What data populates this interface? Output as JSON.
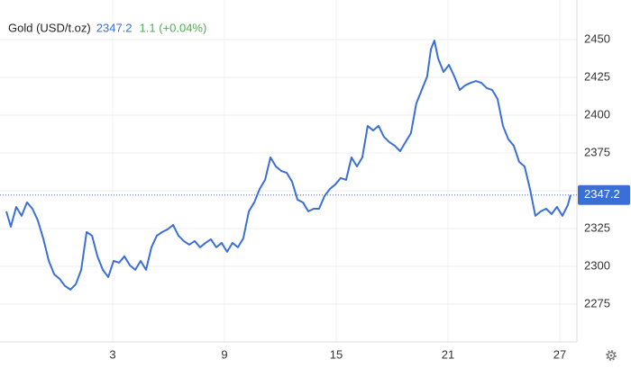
{
  "chart_data": {
    "type": "line",
    "title": "Gold (USD/t.oz)",
    "price": 2347.2,
    "change": "1.1 (+0.04%)",
    "color": "#3b6fd6",
    "price_color": "#3b6fd6",
    "change_color": "#4caf50",
    "grid": true,
    "xlim": [
      -3.05,
      27.92
    ],
    "ylim": [
      2250,
      2476.2
    ],
    "xticks": [
      3,
      9,
      15,
      21,
      27
    ],
    "yticks": [
      2275,
      2300,
      2325,
      2350,
      2375,
      2400,
      2425,
      2450
    ],
    "x": [
      -2.71,
      -2.47,
      -2.18,
      -1.89,
      -1.6,
      -1.31,
      -1.02,
      -0.73,
      -0.43,
      -0.14,
      0.15,
      0.44,
      0.73,
      1.02,
      1.31,
      1.6,
      1.89,
      2.18,
      2.47,
      2.76,
      3.05,
      3.34,
      3.63,
      3.92,
      4.21,
      4.5,
      4.79,
      5.08,
      5.37,
      5.66,
      5.95,
      6.24,
      6.53,
      6.82,
      7.11,
      7.4,
      7.69,
      7.98,
      8.27,
      8.56,
      8.85,
      9.14,
      9.43,
      9.72,
      10.01,
      10.31,
      10.6,
      10.89,
      11.18,
      11.47,
      11.76,
      12.05,
      12.34,
      12.63,
      12.92,
      13.21,
      13.5,
      13.79,
      14.08,
      14.37,
      14.66,
      14.95,
      15.24,
      15.53,
      15.82,
      16.11,
      16.4,
      16.69,
      16.98,
      17.27,
      17.56,
      17.85,
      18.14,
      18.43,
      18.72,
      19.01,
      19.3,
      19.59,
      19.88,
      20.08,
      20.27,
      20.47,
      20.76,
      21.05,
      21.34,
      21.63,
      21.92,
      22.21,
      22.5,
      22.79,
      23.08,
      23.37,
      23.66,
      23.95,
      24.24,
      24.53,
      24.82,
      25.11,
      25.4,
      25.69,
      25.98,
      26.27,
      26.56,
      26.85,
      27.14,
      27.43,
      27.58
    ],
    "values": [
      2336.4,
      2326.2,
      2339.3,
      2333.4,
      2342.3,
      2338.1,
      2330.4,
      2318.5,
      2303.6,
      2294.7,
      2291.7,
      2287.0,
      2284.6,
      2288.2,
      2297.7,
      2322.7,
      2320.3,
      2306.6,
      2297.7,
      2292.9,
      2303.6,
      2302.4,
      2306.6,
      2300.7,
      2297.7,
      2303.6,
      2297.7,
      2312.6,
      2320.3,
      2322.7,
      2324.5,
      2327.4,
      2320.3,
      2316.7,
      2314.3,
      2316.7,
      2312.6,
      2315.5,
      2317.9,
      2312.6,
      2315.5,
      2309.6,
      2315.5,
      2312.6,
      2318.5,
      2336.4,
      2342.3,
      2351.2,
      2357.2,
      2372.1,
      2366.1,
      2363.1,
      2361.9,
      2356.0,
      2344.1,
      2342.3,
      2336.4,
      2338.1,
      2338.1,
      2346.5,
      2351.2,
      2354.2,
      2358.4,
      2357.2,
      2372.1,
      2366.1,
      2372.1,
      2392.9,
      2389.9,
      2392.9,
      2385.7,
      2382.2,
      2379.8,
      2376.2,
      2382.2,
      2388.1,
      2407.8,
      2416.7,
      2425.6,
      2443.5,
      2449.4,
      2437.5,
      2428.6,
      2433.3,
      2425.6,
      2416.7,
      2419.7,
      2421.4,
      2422.6,
      2421.4,
      2417.9,
      2416.7,
      2410.7,
      2392.9,
      2384.0,
      2379.8,
      2369.1,
      2366.1,
      2351.2,
      2333.4,
      2336.4,
      2338.1,
      2334.6,
      2339.3,
      2333.4,
      2340.5,
      2347.2
    ]
  }
}
